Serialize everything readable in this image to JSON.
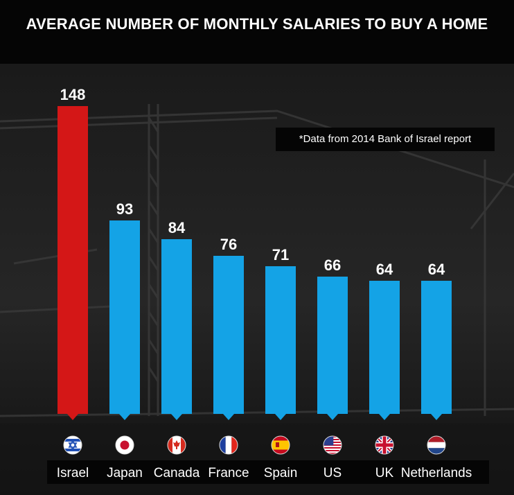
{
  "chart_data": {
    "type": "bar",
    "title": "AVERAGE NUMBER OF MONTHLY SALARIES TO BUY A HOME",
    "annotation": "*Data from 2014 Bank of Israel report",
    "categories": [
      "Israel",
      "Japan",
      "Canada",
      "France",
      "Spain",
      "US",
      "UK",
      "Netherlands"
    ],
    "values": [
      148,
      93,
      84,
      76,
      71,
      66,
      64,
      64
    ],
    "flag_icons": [
      "israel-flag-icon",
      "japan-flag-icon",
      "canada-flag-icon",
      "france-flag-icon",
      "spain-flag-icon",
      "us-flag-icon",
      "uk-flag-icon",
      "netherlands-flag-icon"
    ],
    "colors": {
      "highlight": "#d41717",
      "bars": "#14a3e6",
      "background": "#0b0b0b",
      "text": "#ffffff"
    },
    "highlight_category": "Israel",
    "grid": false,
    "legend": "none"
  }
}
